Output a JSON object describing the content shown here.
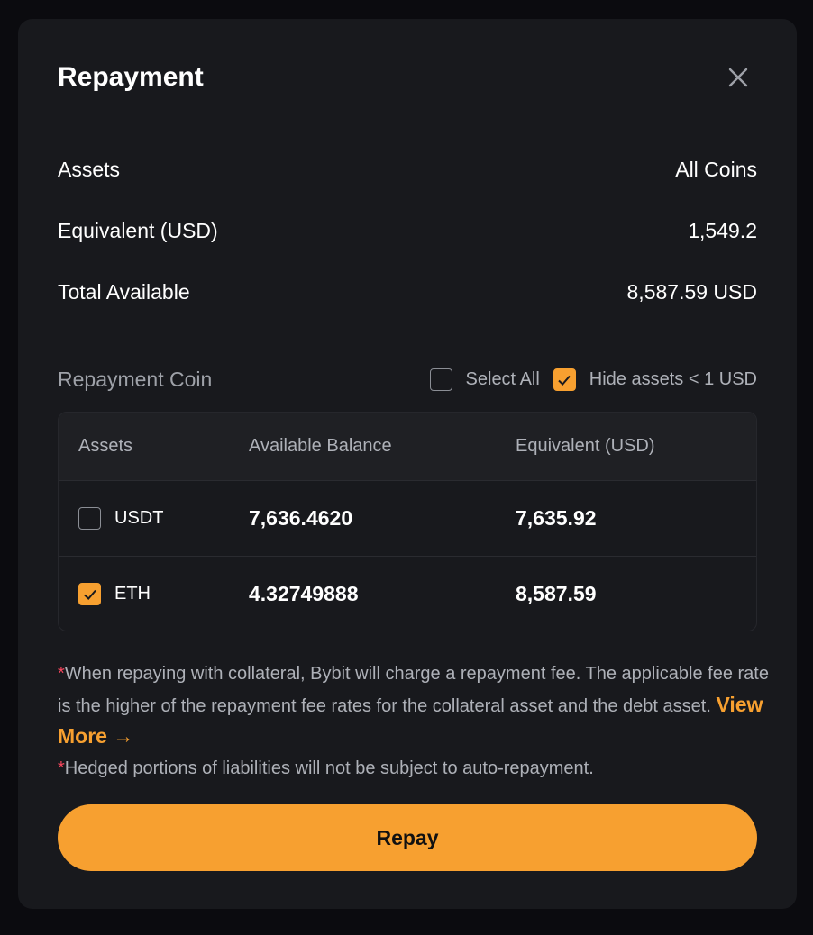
{
  "modal": {
    "title": "Repayment"
  },
  "summary": [
    {
      "label": "Assets",
      "value": "All Coins"
    },
    {
      "label": "Equivalent (USD)",
      "value": "1,549.2"
    },
    {
      "label": "Total Available",
      "value": "8,587.59 USD"
    }
  ],
  "coin": {
    "label": "Repayment Coin",
    "select_all": "Select All",
    "select_all_checked": false,
    "hide_small": "Hide assets < 1 USD",
    "hide_small_checked": true
  },
  "table": {
    "headers": [
      "Assets",
      "Available Balance",
      "Equivalent (USD)"
    ],
    "rows": [
      {
        "asset": "USDT",
        "balance": "7,636.4620",
        "equivalent": "7,635.92",
        "checked": false
      },
      {
        "asset": "ETH",
        "balance": "4.32749888",
        "equivalent": "8,587.59",
        "checked": true
      }
    ]
  },
  "notes": {
    "asterisk": "*",
    "note1": "When repaying with collateral, Bybit will charge a repayment fee. The applicable fee rate is the higher of the repayment fee rates for the collateral asset and the debt asset. ",
    "view_more": "View More →",
    "note2": "Hedged portions of liabilities will not be subject to auto-repayment."
  },
  "repay_button": "Repay",
  "colors": {
    "accent": "#f7a030",
    "asterisk": "#f6465d",
    "modal_bg": "#18191d"
  }
}
